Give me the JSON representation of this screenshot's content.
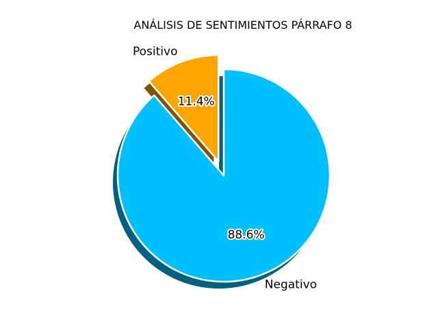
{
  "chart_data": {
    "type": "pie",
    "title": "ANÁLISIS DE SENTIMIENTOS PÁRRAFO 8",
    "slices": [
      {
        "label": "Positivo",
        "value": 11.4,
        "pct_label": "11.4%",
        "color": "#FFA500",
        "exploded": true
      },
      {
        "label": "Negativo",
        "value": 88.6,
        "pct_label": "88.6%",
        "color": "#00BFFF",
        "exploded": false
      }
    ],
    "start_angle_deg": 90,
    "direction": "counterclockwise",
    "shadow": true,
    "edge_color": "#FFFFFF",
    "legend": "none"
  }
}
